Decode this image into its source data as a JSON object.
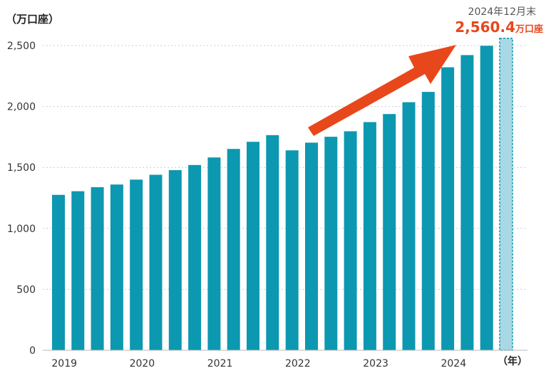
{
  "chart_data": {
    "type": "bar",
    "unit_label": "（万口座）",
    "x_unit_label": "（年）",
    "year_labels": [
      "2019",
      "2020",
      "2021",
      "2022",
      "2023",
      "2024"
    ],
    "yticks": [
      "0",
      "500",
      "1,000",
      "1,500",
      "2,000",
      "2,500"
    ],
    "ylim": [
      0,
      2600
    ],
    "grid": true,
    "colors": {
      "bar": "#0c98b0",
      "highlight_fill": "#a9d8e5",
      "highlight_border": "#0c98b0",
      "arrow": "#e8471c"
    },
    "values": [
      1275,
      1305,
      1338,
      1360,
      1400,
      1440,
      1478,
      1520,
      1582,
      1652,
      1710,
      1765,
      1640,
      1703,
      1752,
      1797,
      1872,
      1938,
      2035,
      2120,
      2322,
      2422,
      2498,
      2560.4
    ],
    "highlight_index": 23,
    "callout": {
      "date": "2024年12月末",
      "value": "2,560.4",
      "unit": "万口座"
    }
  }
}
